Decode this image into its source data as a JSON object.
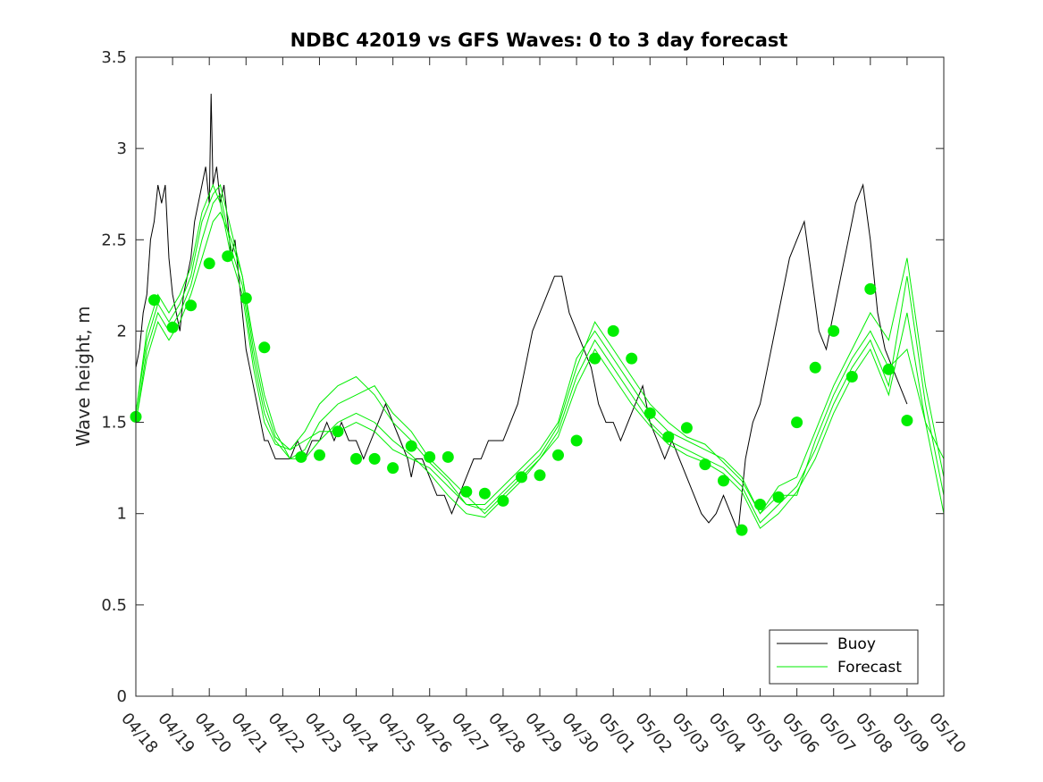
{
  "chart_data": {
    "type": "line",
    "title": "NDBC 42019 vs GFS Waves: 0 to 3 day forecast",
    "xlabel": "",
    "ylabel": "Wave height, m",
    "ylim": [
      0,
      3.5
    ],
    "yticks": [
      "0",
      "0.5",
      "1",
      "1.5",
      "2",
      "2.5",
      "3",
      "3.5"
    ],
    "xlim_day": [
      0,
      22
    ],
    "xticks": [
      "04/18",
      "04/19",
      "04/20",
      "04/21",
      "04/22",
      "04/23",
      "04/24",
      "04/25",
      "04/26",
      "04/27",
      "04/28",
      "04/29",
      "04/30",
      "05/01",
      "05/02",
      "05/03",
      "05/04",
      "05/05",
      "05/06",
      "05/07",
      "05/08",
      "05/09",
      "05/10"
    ],
    "grid": false,
    "legend": {
      "placement": "bottom-right",
      "entries": [
        "Buoy",
        "Forecast"
      ]
    },
    "colors": {
      "buoy": "#000000",
      "forecast": "#00ee00",
      "axis": "#262626"
    },
    "series": [
      {
        "name": "Buoy",
        "style": "line",
        "x": [
          0,
          0.1,
          0.2,
          0.3,
          0.4,
          0.5,
          0.6,
          0.7,
          0.8,
          0.9,
          1.0,
          1.1,
          1.2,
          1.3,
          1.4,
          1.5,
          1.6,
          1.7,
          1.8,
          1.9,
          2.0,
          2.05,
          2.1,
          2.2,
          2.3,
          2.4,
          2.5,
          2.6,
          2.7,
          2.8,
          2.9,
          3.0,
          3.1,
          3.2,
          3.3,
          3.4,
          3.5,
          3.6,
          3.8,
          4.0,
          4.2,
          4.4,
          4.6,
          4.8,
          5.0,
          5.2,
          5.4,
          5.6,
          5.8,
          6.0,
          6.2,
          6.4,
          6.6,
          6.8,
          7.0,
          7.2,
          7.4,
          7.5,
          7.6,
          7.8,
          8.0,
          8.2,
          8.4,
          8.6,
          8.8,
          9.0,
          9.2,
          9.4,
          9.6,
          9.8,
          10.0,
          10.2,
          10.4,
          10.6,
          10.8,
          11.0,
          11.2,
          11.4,
          11.6,
          11.8,
          12.0,
          12.2,
          12.4,
          12.6,
          12.8,
          13.0,
          13.2,
          13.4,
          13.6,
          13.8,
          14.0,
          14.2,
          14.4,
          14.6,
          14.8,
          15.0,
          15.2,
          15.4,
          15.6,
          15.8,
          16.0,
          16.2,
          16.4,
          16.6,
          16.8,
          17.0,
          17.2,
          17.4,
          17.6,
          17.8,
          18.0,
          18.2,
          18.4,
          18.6,
          18.8,
          19.0,
          19.2,
          19.4,
          19.6,
          19.8,
          20.0,
          20.2,
          20.4,
          20.6,
          20.8,
          21.0
        ],
        "values": [
          1.8,
          1.9,
          2.1,
          2.2,
          2.5,
          2.6,
          2.8,
          2.7,
          2.8,
          2.4,
          2.2,
          2.1,
          2.0,
          2.2,
          2.3,
          2.4,
          2.6,
          2.7,
          2.8,
          2.9,
          2.7,
          3.3,
          2.8,
          2.9,
          2.7,
          2.8,
          2.6,
          2.4,
          2.5,
          2.3,
          2.1,
          1.9,
          1.8,
          1.7,
          1.6,
          1.5,
          1.4,
          1.4,
          1.3,
          1.3,
          1.3,
          1.4,
          1.3,
          1.4,
          1.4,
          1.5,
          1.4,
          1.5,
          1.4,
          1.4,
          1.3,
          1.4,
          1.5,
          1.6,
          1.5,
          1.4,
          1.3,
          1.2,
          1.3,
          1.3,
          1.2,
          1.1,
          1.1,
          1.0,
          1.1,
          1.2,
          1.3,
          1.3,
          1.4,
          1.4,
          1.4,
          1.5,
          1.6,
          1.8,
          2.0,
          2.1,
          2.2,
          2.3,
          2.3,
          2.1,
          2.0,
          1.9,
          1.8,
          1.6,
          1.5,
          1.5,
          1.4,
          1.5,
          1.6,
          1.7,
          1.5,
          1.4,
          1.3,
          1.4,
          1.3,
          1.2,
          1.1,
          1.0,
          0.95,
          1.0,
          1.1,
          1.0,
          0.9,
          1.3,
          1.5,
          1.6,
          1.8,
          2.0,
          2.2,
          2.4,
          2.5,
          2.6,
          2.3,
          2.0,
          1.9,
          2.1,
          2.3,
          2.5,
          2.7,
          2.8,
          2.5,
          2.1,
          1.9,
          1.8,
          1.7,
          1.6
        ]
      },
      {
        "name": "Forecast",
        "style": "line",
        "x": [
          0,
          0.3,
          0.6,
          0.9,
          1.2,
          1.5,
          1.8,
          2.1,
          2.3,
          2.6,
          2.9,
          3.2,
          3.5,
          3.8,
          4.2,
          4.6,
          5.0,
          5.5,
          6.0,
          6.5,
          7.0,
          7.5,
          8.0,
          8.5,
          9.0,
          9.5,
          10.0,
          10.5,
          11.0,
          11.5,
          12.0,
          12.5,
          13.0,
          13.5,
          14.0,
          14.5,
          15.0,
          15.5,
          16.0,
          16.5,
          17.0,
          17.5,
          18.0,
          18.5,
          19.0,
          19.5,
          20.0,
          20.5,
          21.0,
          21.5,
          22.0
        ],
        "values": [
          1.55,
          1.95,
          2.15,
          2.05,
          2.15,
          2.3,
          2.6,
          2.75,
          2.8,
          2.55,
          2.3,
          1.9,
          1.6,
          1.42,
          1.35,
          1.4,
          1.45,
          1.45,
          1.5,
          1.45,
          1.35,
          1.3,
          1.25,
          1.15,
          1.05,
          1.05,
          1.15,
          1.25,
          1.35,
          1.5,
          1.85,
          2.0,
          1.85,
          1.7,
          1.55,
          1.45,
          1.4,
          1.35,
          1.3,
          1.2,
          1.0,
          1.1,
          1.1,
          1.4,
          1.65,
          1.85,
          2.0,
          1.8,
          1.9,
          1.5,
          1.3
        ]
      },
      {
        "name": "Forecast",
        "style": "line",
        "x": [
          0,
          0.3,
          0.6,
          0.9,
          1.2,
          1.5,
          1.8,
          2.1,
          2.3,
          2.6,
          2.9,
          3.2,
          3.5,
          3.8,
          4.2,
          4.6,
          5.0,
          5.5,
          6.0,
          6.5,
          7.0,
          7.5,
          8.0,
          8.5,
          9.0,
          9.5,
          10.0,
          10.5,
          11.0,
          11.5,
          12.0,
          12.5,
          13.0,
          13.5,
          14.0,
          14.5,
          15.0,
          15.5,
          16.0,
          16.5,
          17.0,
          17.5,
          18.0,
          18.5,
          19.0,
          19.5,
          20.0,
          20.5,
          21.0,
          21.5,
          22.0
        ],
        "values": [
          1.5,
          1.9,
          2.1,
          2.0,
          2.1,
          2.25,
          2.5,
          2.7,
          2.75,
          2.45,
          2.25,
          1.85,
          1.55,
          1.4,
          1.3,
          1.35,
          1.5,
          1.6,
          1.65,
          1.7,
          1.55,
          1.45,
          1.3,
          1.2,
          1.1,
          1.0,
          1.1,
          1.2,
          1.3,
          1.45,
          1.75,
          1.95,
          1.8,
          1.65,
          1.5,
          1.4,
          1.35,
          1.3,
          1.25,
          1.15,
          0.95,
          1.05,
          1.15,
          1.35,
          1.6,
          1.8,
          1.95,
          1.7,
          2.3,
          1.6,
          1.1
        ]
      },
      {
        "name": "Forecast",
        "style": "line",
        "x": [
          0,
          0.3,
          0.6,
          0.9,
          1.2,
          1.5,
          1.8,
          2.1,
          2.3,
          2.6,
          2.9,
          3.2,
          3.5,
          3.8,
          4.2,
          4.6,
          5.0,
          5.5,
          6.0,
          6.5,
          7.0,
          7.5,
          8.0,
          8.5,
          9.0,
          9.5,
          10.0,
          10.5,
          11.0,
          11.5,
          12.0,
          12.5,
          13.0,
          13.5,
          14.0,
          14.5,
          15.0,
          15.5,
          16.0,
          16.5,
          17.0,
          17.5,
          18.0,
          18.5,
          19.0,
          19.5,
          20.0,
          20.5,
          21.0,
          21.5,
          22.0
        ],
        "values": [
          1.55,
          2.0,
          2.2,
          2.1,
          2.2,
          2.35,
          2.65,
          2.8,
          2.7,
          2.4,
          2.2,
          1.8,
          1.5,
          1.38,
          1.35,
          1.45,
          1.6,
          1.7,
          1.75,
          1.65,
          1.5,
          1.4,
          1.28,
          1.18,
          1.05,
          1.02,
          1.12,
          1.22,
          1.32,
          1.48,
          1.8,
          2.05,
          1.9,
          1.75,
          1.6,
          1.5,
          1.42,
          1.38,
          1.28,
          1.18,
          1.0,
          1.15,
          1.2,
          1.45,
          1.7,
          1.9,
          2.1,
          1.95,
          2.4,
          1.7,
          1.2
        ]
      },
      {
        "name": "Forecast",
        "style": "line",
        "x": [
          0,
          0.3,
          0.6,
          0.9,
          1.2,
          1.5,
          1.8,
          2.1,
          2.3,
          2.6,
          2.9,
          3.2,
          3.5,
          3.8,
          4.2,
          4.6,
          5.0,
          5.5,
          6.0,
          6.5,
          7.0,
          7.5,
          8.0,
          8.5,
          9.0,
          9.5,
          10.0,
          10.5,
          11.0,
          11.5,
          12.0,
          12.5,
          13.0,
          13.5,
          14.0,
          14.5,
          15.0,
          15.5,
          16.0,
          16.5,
          17.0,
          17.5,
          18.0,
          18.5,
          19.0,
          19.5,
          20.0,
          20.5,
          21.0,
          21.5,
          22.0
        ],
        "values": [
          1.5,
          1.85,
          2.05,
          1.95,
          2.05,
          2.2,
          2.4,
          2.6,
          2.65,
          2.5,
          2.3,
          1.95,
          1.65,
          1.45,
          1.3,
          1.3,
          1.4,
          1.5,
          1.55,
          1.5,
          1.4,
          1.32,
          1.22,
          1.1,
          1.0,
          0.98,
          1.08,
          1.18,
          1.3,
          1.42,
          1.7,
          1.9,
          1.75,
          1.6,
          1.48,
          1.38,
          1.32,
          1.28,
          1.22,
          1.12,
          0.92,
          1.0,
          1.12,
          1.3,
          1.55,
          1.75,
          1.9,
          1.65,
          2.1,
          1.5,
          1.0
        ]
      },
      {
        "name": "Forecast",
        "style": "markers",
        "x": [
          0,
          0.5,
          1.0,
          1.5,
          2.0,
          2.5,
          3.0,
          3.5,
          4.5,
          5.0,
          5.5,
          6.0,
          6.5,
          7.0,
          7.5,
          8.0,
          8.5,
          9.0,
          9.5,
          10.0,
          10.5,
          11.0,
          11.5,
          12.0,
          12.5,
          13.0,
          13.5,
          14.0,
          14.5,
          15.0,
          15.5,
          16.0,
          16.5,
          17.0,
          17.5,
          18.0,
          18.5,
          19.0,
          19.5,
          20.0,
          20.5,
          21.0
        ],
        "values": [
          1.53,
          2.17,
          2.02,
          2.14,
          2.37,
          2.41,
          2.18,
          1.91,
          1.31,
          1.32,
          1.45,
          1.3,
          1.3,
          1.25,
          1.37,
          1.31,
          1.31,
          1.12,
          1.11,
          1.07,
          1.2,
          1.21,
          1.32,
          1.4,
          1.85,
          2.0,
          1.85,
          1.55,
          1.42,
          1.47,
          1.27,
          1.18,
          0.91,
          1.05,
          1.09,
          1.5,
          1.8,
          2.0,
          1.75,
          2.23,
          1.79,
          1.51
        ]
      }
    ]
  }
}
